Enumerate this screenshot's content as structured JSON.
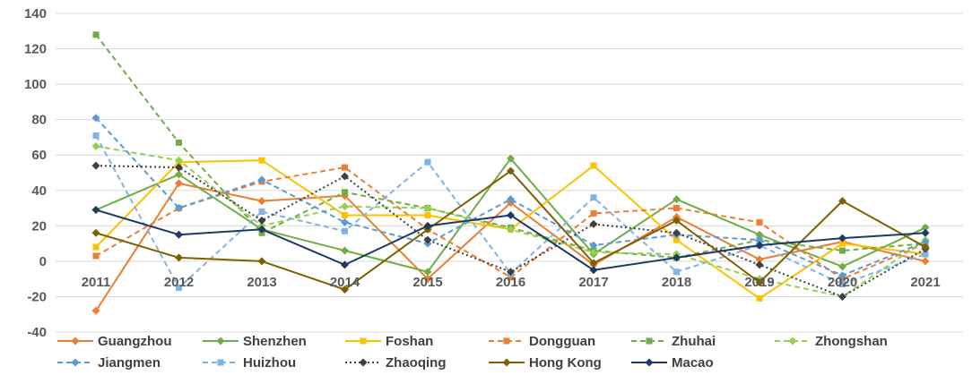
{
  "chart_data": {
    "type": "line",
    "title": "",
    "xlabel": "",
    "ylabel": "",
    "ylim": [
      -40,
      140
    ],
    "y_ticks": [
      "-40",
      "-20",
      "0",
      "20",
      "40",
      "60",
      "80",
      "100",
      "120",
      "140"
    ],
    "x": [
      "2011",
      "2012",
      "2013",
      "2014",
      "2015",
      "2016",
      "2017",
      "2018",
      "2019",
      "2020",
      "2021"
    ],
    "grid": "horizontal",
    "legend_position": "bottom",
    "series": [
      {
        "name": "Guangzhou",
        "color": "#ED7D31",
        "dash": "solid",
        "marker": "diamond",
        "values": [
          -28,
          44,
          34,
          37,
          -10,
          33,
          -2,
          25,
          1,
          11,
          0
        ]
      },
      {
        "name": "Shenzhen",
        "color": "#70AD47",
        "dash": "solid",
        "marker": "diamond",
        "values": [
          29,
          49,
          18,
          6,
          -6,
          58,
          4,
          35,
          15,
          -3,
          19
        ]
      },
      {
        "name": "Foshan",
        "color": "#FFC000",
        "dash": "solid",
        "marker": "square",
        "values": [
          8,
          56,
          57,
          26,
          26,
          18,
          54,
          12,
          -21,
          10,
          4
        ]
      },
      {
        "name": "Dongguan",
        "color": "#ED7D31",
        "dash": "dash",
        "marker": "square",
        "values": [
          3,
          30,
          45,
          53,
          18,
          -9,
          27,
          30,
          22,
          -10,
          10
        ]
      },
      {
        "name": "Zhuhai",
        "color": "#70AD47",
        "dash": "dash",
        "marker": "square",
        "values": [
          128,
          67,
          16,
          39,
          30,
          19,
          6,
          2,
          12,
          6,
          10
        ]
      },
      {
        "name": "Zhongshan",
        "color": "#92D050",
        "dash": "dash",
        "marker": "diamond",
        "values": [
          65,
          57,
          20,
          31,
          30,
          18,
          5,
          4,
          -10,
          -20,
          12
        ]
      },
      {
        "name": "Jiangmen",
        "color": "#5B9BD5",
        "dash": "dash",
        "marker": "diamond",
        "values": [
          81,
          30,
          46,
          22,
          10,
          35,
          9,
          15,
          12,
          -8,
          11
        ]
      },
      {
        "name": "Huizhou",
        "color": "#7FB2E5",
        "dash": "dash",
        "marker": "square",
        "values": [
          71,
          -15,
          28,
          17,
          56,
          -7,
          36,
          -6,
          9,
          -13,
          4
        ]
      },
      {
        "name": "Zhaoqing",
        "color": "#404040",
        "dash": "dot",
        "marker": "diamond",
        "values": [
          54,
          53,
          23,
          48,
          12,
          -6,
          21,
          16,
          -2,
          -20,
          7
        ]
      },
      {
        "name": "Hong Kong",
        "color": "#7F6000",
        "dash": "solid",
        "marker": "diamond",
        "values": [
          16,
          2,
          0,
          -16,
          18,
          51,
          -1,
          23,
          -12,
          34,
          8
        ]
      },
      {
        "name": "Macao",
        "color": "#1F3864",
        "dash": "solid",
        "marker": "diamond",
        "values": [
          29,
          15,
          18,
          -2,
          20,
          26,
          -5,
          2,
          9,
          13,
          16
        ]
      }
    ]
  }
}
